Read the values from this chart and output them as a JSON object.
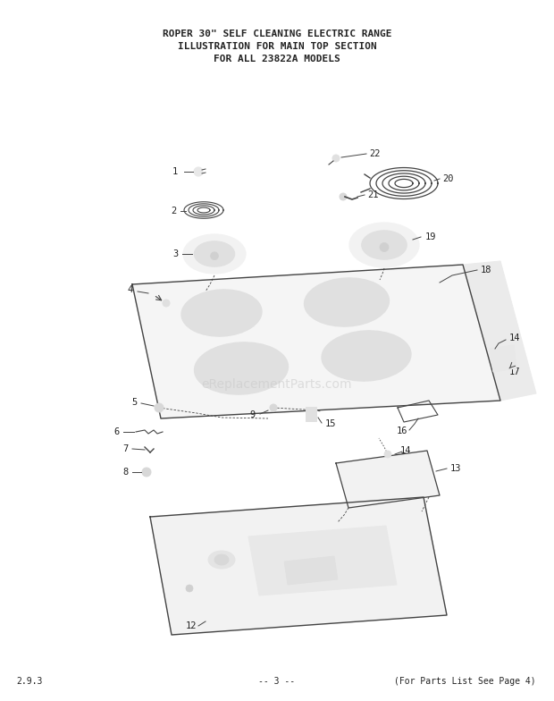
{
  "title_lines": [
    "ROPER 30\" SELF CLEANING ELECTRIC RANGE",
    "ILLUSTRATION FOR MAIN TOP SECTION",
    "FOR ALL 23822A MODELS"
  ],
  "footer_left": "2.9.3",
  "footer_center": "-- 3 --",
  "footer_right": "(For Parts List See Page 4)",
  "bg_color": "#ffffff",
  "line_color": "#444444",
  "text_color": "#222222",
  "watermark": "eReplacementParts.com",
  "figsize": [
    6.2,
    7.84
  ],
  "dpi": 100
}
